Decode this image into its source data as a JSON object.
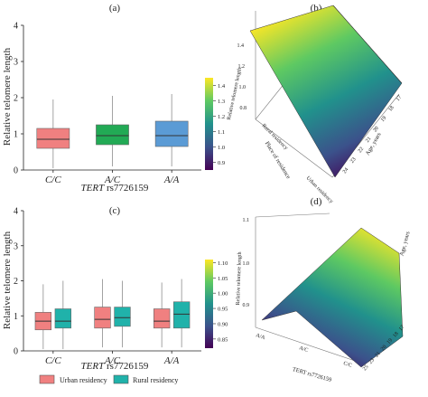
{
  "panels": {
    "a": {
      "label": "(a)"
    },
    "b": {
      "label": "(b)"
    },
    "c": {
      "label": "(c)"
    },
    "d": {
      "label": "(d)"
    }
  },
  "colors": {
    "urban": "#f08080",
    "rural": "#20b2aa",
    "ac": "#22aa55",
    "aa": "#5b9bd5"
  },
  "chart_data": [
    {
      "panel": "a",
      "type": "box",
      "ylabel": "Relative telomere length",
      "xlabel_italic": "TERT",
      "xlabel_rest": " rs7726159",
      "ylim": [
        0,
        4
      ],
      "yticks": [
        "0",
        "1",
        "2",
        "3",
        "4"
      ],
      "categories": [
        "C/C",
        "A/C",
        "A/A"
      ],
      "boxes": [
        {
          "category": "C/C",
          "whisker_low": 0.05,
          "q1": 0.6,
          "median": 0.85,
          "q3": 1.15,
          "whisker_high": 1.95,
          "color": "#f08080"
        },
        {
          "category": "A/C",
          "whisker_low": 0.1,
          "q1": 0.7,
          "median": 0.95,
          "q3": 1.25,
          "whisker_high": 2.05,
          "color": "#22aa55"
        },
        {
          "category": "A/A",
          "whisker_low": 0.1,
          "q1": 0.65,
          "median": 0.95,
          "q3": 1.35,
          "whisker_high": 2.1,
          "color": "#5b9bd5"
        }
      ]
    },
    {
      "panel": "c",
      "type": "box",
      "ylabel": "Relative telomere length",
      "xlabel_italic": "TERT",
      "xlabel_rest": " rs7726159",
      "ylim": [
        0,
        4
      ],
      "yticks": [
        "0",
        "1",
        "2",
        "3",
        "4"
      ],
      "categories": [
        "C/C",
        "A/C",
        "A/A"
      ],
      "legend": {
        "position": "bottom",
        "entries": [
          {
            "name": "Urban residency",
            "color": "#f08080"
          },
          {
            "name": "Rural residency",
            "color": "#20b2aa"
          }
        ]
      },
      "boxes": [
        {
          "category": "C/C",
          "group": "Urban residency",
          "whisker_low": 0.05,
          "q1": 0.6,
          "median": 0.85,
          "q3": 1.1,
          "whisker_high": 1.9,
          "color": "#f08080"
        },
        {
          "category": "C/C",
          "group": "Rural residency",
          "whisker_low": 0.05,
          "q1": 0.65,
          "median": 0.85,
          "q3": 1.2,
          "whisker_high": 2.0,
          "color": "#20b2aa"
        },
        {
          "category": "A/C",
          "group": "Urban residency",
          "whisker_low": 0.1,
          "q1": 0.65,
          "median": 0.9,
          "q3": 1.25,
          "whisker_high": 2.05,
          "color": "#f08080"
        },
        {
          "category": "A/C",
          "group": "Rural residency",
          "whisker_low": 0.1,
          "q1": 0.7,
          "median": 0.95,
          "q3": 1.25,
          "whisker_high": 2.0,
          "color": "#20b2aa"
        },
        {
          "category": "A/A",
          "group": "Urban residency",
          "whisker_low": 0.1,
          "q1": 0.65,
          "median": 0.85,
          "q3": 1.2,
          "whisker_high": 1.95,
          "color": "#f08080"
        },
        {
          "category": "A/A",
          "group": "Rural residency",
          "whisker_low": 0.1,
          "q1": 0.65,
          "median": 1.05,
          "q3": 1.4,
          "whisker_high": 2.05,
          "color": "#20b2aa"
        }
      ]
    },
    {
      "panel": "b",
      "type": "surface3d",
      "zlabel": "Relative telomere length",
      "zticks": [
        "0.8",
        "1.0",
        "1.2",
        "1.4"
      ],
      "residence_label": "Place of residence",
      "residence_ticks": [
        "Rural residency",
        "Urban residency"
      ],
      "age_label": "Age, years",
      "age_ticks": [
        "17",
        "18",
        "19",
        "20",
        "21",
        "22",
        "23",
        "24"
      ],
      "colorbar": {
        "ticks": [
          "0.9",
          "1.0",
          "1.1",
          "1.2",
          "1.3",
          "1.4"
        ],
        "range": [
          0.85,
          1.45
        ]
      }
    },
    {
      "panel": "d",
      "type": "surface3d",
      "zlabel": "Relative telomere length",
      "zticks": [
        "0.9",
        "1.0",
        "1.1"
      ],
      "genotype_label": "TERT rs7726159",
      "genotype_ticks": [
        "A/A",
        "A/C",
        "C/C"
      ],
      "age_label": "Age, years",
      "age_ticks": [
        "17",
        "18",
        "19",
        "20",
        "21",
        "23",
        "25"
      ],
      "colorbar": {
        "ticks": [
          "0.85",
          "0.90",
          "0.95",
          "1.00",
          "1.05",
          "1.10"
        ],
        "range": [
          0.82,
          1.11
        ]
      }
    }
  ]
}
